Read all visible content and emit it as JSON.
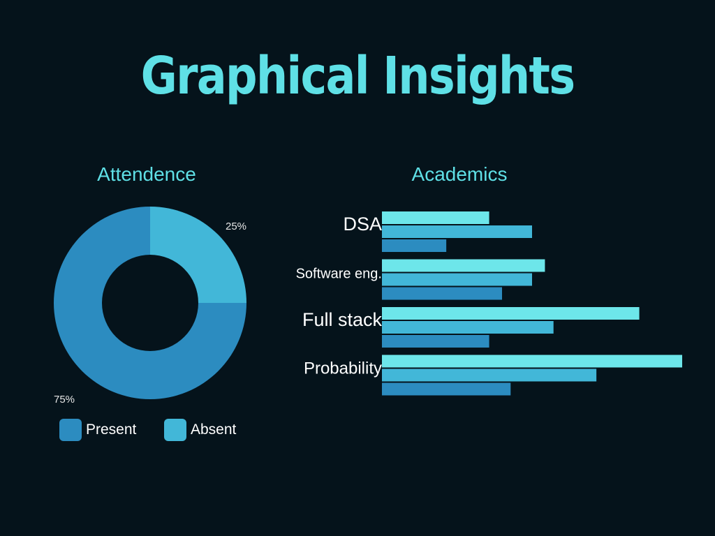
{
  "title": "Graphical Insights",
  "colors": {
    "background": "#05131b",
    "title": "#5fe0e6",
    "subtitle": "#5fe0e6",
    "label_text": "#ffffff",
    "pct_text": "#e6e6e6"
  },
  "chart_data": [
    {
      "type": "pie",
      "title": "Attendence",
      "donut": true,
      "slices": [
        {
          "label": "Present",
          "value": 75,
          "display": "75%",
          "color": "#2c8cc0"
        },
        {
          "label": "Absent",
          "value": 25,
          "display": "25%",
          "color": "#42b7d8"
        }
      ],
      "legend": {
        "placement": "bottom",
        "items": [
          "Present",
          "Absent"
        ]
      }
    },
    {
      "type": "bar",
      "orientation": "horizontal",
      "title": "Academics",
      "categories": [
        "DSA",
        "Software eng.",
        "Full stack",
        "Probability"
      ],
      "series": [
        {
          "values": [
            2.5,
            3.8,
            6.0,
            7.0
          ],
          "color": "#6de6ea"
        },
        {
          "values": [
            3.5,
            3.5,
            4.0,
            5.0
          ],
          "color": "#42b7d8"
        },
        {
          "values": [
            1.5,
            2.8,
            2.5,
            3.0
          ],
          "color": "#2c8cc0"
        }
      ],
      "xlim": [
        0,
        7
      ],
      "grid": false
    }
  ]
}
